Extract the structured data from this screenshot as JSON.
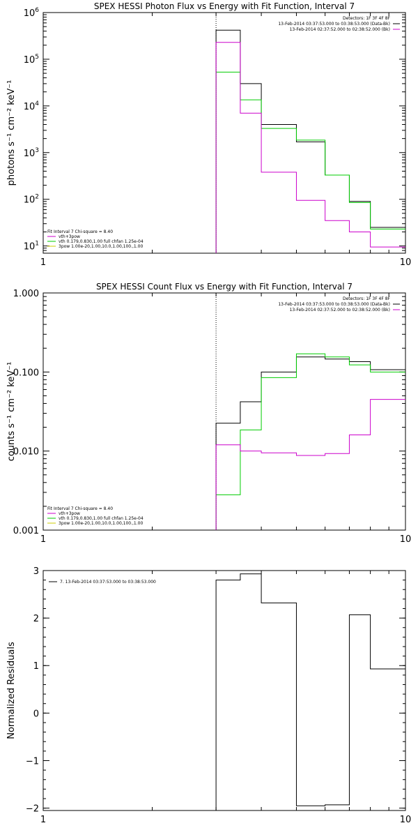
{
  "chart_data": [
    {
      "type": "line",
      "title": "SPEX HESSI Photon Flux vs Energy with Fit Function, Interval 7",
      "ylabel": "photons s⁻¹ cm⁻² keV⁻¹",
      "xlabel": "",
      "x_scale": "log",
      "y_scale": "log",
      "xlim": [
        1,
        10
      ],
      "ylim": [
        7,
        1000000.0
      ],
      "x_ticks": [
        {
          "v": 1,
          "label": "1"
        },
        {
          "v": 10,
          "label": "10"
        }
      ],
      "y_ticks": [
        {
          "v": 10,
          "base": "10",
          "exp": "1"
        },
        {
          "v": 100,
          "base": "10",
          "exp": "2"
        },
        {
          "v": 1000,
          "base": "10",
          "exp": "3"
        },
        {
          "v": 10000,
          "base": "10",
          "exp": "4"
        },
        {
          "v": 100000,
          "base": "10",
          "exp": "5"
        },
        {
          "v": 1000000,
          "base": "10",
          "exp": "6"
        }
      ],
      "vline": 3,
      "legend_topright": [
        {
          "text": "Detectors: 1F 3F 4F 8F",
          "color": ""
        },
        {
          "text": "13-Feb-2014 03:37:53.000 to 03:38:53.000 (Data-Bk)",
          "color": "#000000"
        },
        {
          "text": "13-Feb-2014 02:37:52.000 to 02:38:52.000 (Bk)",
          "color": "#cc00cc"
        }
      ],
      "legend_bottomleft": [
        {
          "text": "Fit Interval 7   Chi-square = 8.40",
          "color": ""
        },
        {
          "text": "vth+3pow",
          "color": "#cc00cc"
        },
        {
          "text": "vth 0.179,0.830,1.00  full chfan 1.25e-04",
          "color": "#00cc00"
        },
        {
          "text": "3pow 1.00e-20,1.00,10.0,1.00,100.,1.00",
          "color": "#cccc00"
        }
      ],
      "series": [
        {
          "color": "#000000",
          "edges": [
            3,
            3.5,
            4,
            5,
            6,
            7,
            8,
            9,
            10
          ],
          "values": [
            420000,
            30000,
            4000,
            1700,
            330,
            90,
            25,
            25
          ]
        },
        {
          "color": "#00cc00",
          "edges": [
            3,
            3.5,
            4,
            5,
            6,
            7,
            8,
            9,
            10
          ],
          "values": [
            53000,
            13500,
            3300,
            1850,
            330,
            85,
            23,
            23
          ]
        },
        {
          "color": "#cc00cc",
          "edges": [
            3,
            3.5,
            4,
            5,
            6,
            7,
            8,
            9,
            10
          ],
          "values": [
            230000,
            7000,
            380,
            95,
            35,
            20,
            9.5,
            9.5
          ]
        }
      ]
    },
    {
      "type": "line",
      "title": "SPEX HESSI Count Flux vs Energy with Fit Function, Interval 7",
      "ylabel": "counts s⁻¹ cm⁻² keV⁻¹",
      "xlabel": "",
      "x_scale": "log",
      "y_scale": "log",
      "xlim": [
        1,
        10
      ],
      "ylim": [
        0.001,
        1
      ],
      "x_ticks": [
        {
          "v": 1,
          "label": "1"
        },
        {
          "v": 10,
          "label": "10"
        }
      ],
      "y_ticks": [
        {
          "v": 0.001,
          "label": "0.001"
        },
        {
          "v": 0.01,
          "label": "0.010"
        },
        {
          "v": 0.1,
          "label": "0.100"
        },
        {
          "v": 1,
          "label": "1.000"
        }
      ],
      "vline": 3,
      "legend_topright": [
        {
          "text": "Detectors: 1F 3F 4F 8F",
          "color": ""
        },
        {
          "text": "13-Feb-2014 03:37:53.000 to 03:38:53.000 (Data-Bk)",
          "color": "#000000"
        },
        {
          "text": "13-Feb-2014 02:37:52.000 to 02:38:52.000 (Bk)",
          "color": "#cc00cc"
        }
      ],
      "legend_bottomleft": [
        {
          "text": "Fit Interval 7   Chi-square = 8.40",
          "color": ""
        },
        {
          "text": "vth+3pow",
          "color": "#cc00cc"
        },
        {
          "text": "vth 0.179,0.830,1.00  full chfan 1.25e-04",
          "color": "#00cc00"
        },
        {
          "text": "3pow 1.00e-20,1.00,10.0,1.00,100.,1.00",
          "color": "#cccc00"
        }
      ],
      "series": [
        {
          "color": "#000000",
          "edges": [
            3,
            3.5,
            4,
            5,
            6,
            7,
            8,
            9,
            10
          ],
          "values": [
            0.0225,
            0.042,
            0.1,
            0.155,
            0.146,
            0.135,
            0.107,
            0.107
          ]
        },
        {
          "color": "#00cc00",
          "edges": [
            3,
            3.5,
            4,
            5,
            6,
            7,
            8,
            9,
            10
          ],
          "values": [
            0.0028,
            0.0185,
            0.085,
            0.17,
            0.155,
            0.123,
            0.1,
            0.1
          ]
        },
        {
          "color": "#cc00cc",
          "edges": [
            3,
            3.5,
            4,
            5,
            6,
            7,
            8,
            9,
            10
          ],
          "values": [
            0.012,
            0.01,
            0.0095,
            0.0088,
            0.0093,
            0.016,
            0.045,
            0.045
          ]
        }
      ]
    },
    {
      "type": "line",
      "title": "",
      "ylabel": "Normalized Residuals",
      "xlabel": "",
      "x_scale": "log",
      "y_scale": "linear",
      "xlim": [
        1,
        10
      ],
      "ylim": [
        -2.05,
        3.0
      ],
      "x_ticks": [
        {
          "v": 1,
          "label": "1"
        },
        {
          "v": 10,
          "label": "10"
        }
      ],
      "y_ticks": [
        {
          "v": -2,
          "label": "−2"
        },
        {
          "v": -1,
          "label": "−1"
        },
        {
          "v": 0,
          "label": "0"
        },
        {
          "v": 1,
          "label": "1"
        },
        {
          "v": 2,
          "label": "2"
        },
        {
          "v": 3,
          "label": "3"
        }
      ],
      "legend_topleft": [
        {
          "text": "7. 13-Feb-2014 03:37:53.000 to 03:38:53.000",
          "color": "#000000"
        }
      ],
      "series": [
        {
          "color": "#000000",
          "edges": [
            3,
            3.5,
            4,
            5,
            6,
            7,
            8,
            9,
            10
          ],
          "values": [
            2.8,
            2.93,
            2.32,
            -1.95,
            -1.93,
            2.07,
            0.93,
            0.93
          ]
        }
      ]
    }
  ]
}
